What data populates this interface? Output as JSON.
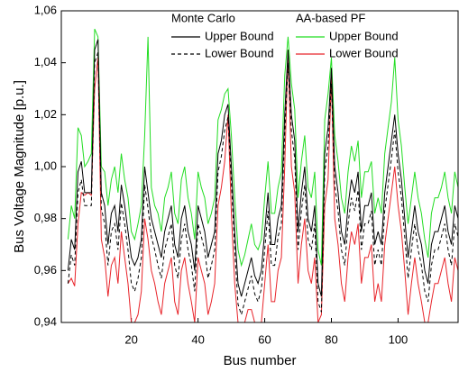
{
  "chart_data": {
    "type": "line",
    "xlabel": "Bus number",
    "ylabel": "Bus Voltage Magnitude [p.u.]",
    "legend_groups": [
      "Monte Carlo",
      "AA-based PF"
    ],
    "xlim": [
      -1,
      118
    ],
    "xticks": [
      20,
      40,
      60,
      80,
      100
    ],
    "ylim": [
      0.94,
      1.06
    ],
    "yticks": [
      {
        "value": 0.94,
        "label": "0,94"
      },
      {
        "value": 0.96,
        "label": "0,96"
      },
      {
        "value": 0.98,
        "label": "0,98"
      },
      {
        "value": 1.0,
        "label": "1,00"
      },
      {
        "value": 1.02,
        "label": "1,02"
      },
      {
        "value": 1.04,
        "label": "1,04"
      },
      {
        "value": 1.06,
        "label": "1,06"
      }
    ],
    "x": [
      1,
      2,
      3,
      4,
      5,
      6,
      7,
      8,
      9,
      10,
      11,
      12,
      13,
      14,
      15,
      16,
      17,
      18,
      19,
      20,
      21,
      22,
      23,
      24,
      25,
      26,
      27,
      28,
      29,
      30,
      31,
      32,
      33,
      34,
      35,
      36,
      37,
      38,
      39,
      40,
      41,
      42,
      43,
      44,
      45,
      46,
      47,
      48,
      49,
      50,
      51,
      52,
      53,
      54,
      55,
      56,
      57,
      58,
      59,
      60,
      61,
      62,
      63,
      64,
      65,
      66,
      67,
      68,
      69,
      70,
      71,
      72,
      73,
      74,
      75,
      76,
      77,
      78,
      79,
      80,
      81,
      82,
      83,
      84,
      85,
      86,
      87,
      88,
      89,
      90,
      91,
      92,
      93,
      94,
      95,
      96,
      97,
      98,
      99,
      100,
      101,
      102,
      103,
      104,
      105,
      106,
      107,
      108,
      109,
      110,
      111,
      112,
      113,
      114,
      115,
      116,
      117,
      118
    ],
    "series": [
      {
        "name": "Upper Bound",
        "group": 0,
        "color": "#000000",
        "line_style": "solid",
        "values": [
          0.96,
          0.972,
          0.968,
          0.998,
          1.002,
          0.99,
          0.99,
          0.99,
          1.045,
          1.049,
          0.99,
          0.985,
          0.97,
          0.982,
          0.985,
          0.975,
          0.993,
          0.985,
          0.975,
          0.965,
          0.962,
          0.965,
          0.972,
          1.0,
          0.99,
          0.98,
          0.975,
          0.97,
          0.965,
          0.975,
          0.98,
          0.985,
          0.97,
          0.965,
          0.98,
          0.985,
          0.975,
          0.97,
          0.96,
          0.985,
          0.98,
          0.975,
          0.965,
          0.97,
          0.975,
          1.005,
          1.01,
          1.02,
          1.024,
          1.0,
          0.975,
          0.955,
          0.95,
          0.955,
          0.96,
          0.965,
          0.958,
          0.955,
          0.96,
          0.975,
          0.99,
          0.97,
          0.97,
          0.98,
          0.985,
          1.02,
          1.045,
          1.02,
          1.01,
          0.975,
          0.99,
          1.0,
          0.98,
          0.975,
          0.985,
          0.955,
          0.95,
          1.005,
          1.015,
          1.038,
          1.0,
          0.99,
          0.975,
          0.97,
          0.985,
          0.995,
          0.99,
          0.998,
          0.975,
          0.985,
          0.985,
          0.99,
          0.97,
          0.975,
          0.97,
          0.99,
          1.0,
          1.01,
          1.02,
          1.005,
          0.995,
          0.98,
          0.965,
          0.975,
          0.985,
          0.975,
          0.97,
          0.96,
          0.955,
          0.97,
          0.975,
          0.975,
          0.98,
          0.985,
          0.975,
          0.97,
          0.985,
          0.98
        ]
      },
      {
        "name": "Lower Bound",
        "group": 0,
        "color": "#000000",
        "line_style": "dashed",
        "values": [
          0.955,
          0.966,
          0.962,
          0.99,
          0.995,
          0.985,
          0.985,
          0.985,
          1.04,
          1.044,
          0.984,
          0.978,
          0.962,
          0.975,
          0.978,
          0.968,
          0.986,
          0.978,
          0.968,
          0.955,
          0.952,
          0.957,
          0.965,
          0.993,
          0.984,
          0.973,
          0.968,
          0.962,
          0.957,
          0.968,
          0.973,
          0.978,
          0.962,
          0.957,
          0.972,
          0.978,
          0.968,
          0.962,
          0.952,
          0.978,
          0.973,
          0.968,
          0.957,
          0.962,
          0.968,
          0.998,
          1.004,
          1.014,
          1.019,
          0.994,
          0.968,
          0.947,
          0.943,
          0.948,
          0.953,
          0.958,
          0.951,
          0.948,
          0.953,
          0.968,
          0.983,
          0.962,
          0.962,
          0.973,
          0.978,
          1.013,
          1.04,
          1.014,
          1.003,
          0.968,
          0.983,
          0.993,
          0.972,
          0.968,
          0.978,
          0.948,
          0.944,
          0.998,
          1.008,
          1.032,
          0.993,
          0.983,
          0.968,
          0.962,
          0.978,
          0.988,
          0.983,
          0.991,
          0.968,
          0.978,
          0.978,
          0.983,
          0.962,
          0.968,
          0.962,
          0.983,
          0.993,
          1.003,
          1.014,
          0.998,
          0.988,
          0.973,
          0.957,
          0.968,
          0.978,
          0.968,
          0.962,
          0.952,
          0.948,
          0.962,
          0.968,
          0.968,
          0.973,
          0.978,
          0.968,
          0.962,
          0.978,
          0.973
        ]
      },
      {
        "name": "Upper Bound",
        "group": 1,
        "color": "#22dd22",
        "line_style": "solid",
        "values": [
          0.972,
          0.985,
          0.98,
          1.015,
          1.012,
          1.0,
          1.002,
          1.005,
          1.053,
          1.05,
          1.0,
          0.998,
          0.985,
          0.995,
          1.0,
          0.99,
          1.005,
          0.995,
          0.988,
          0.975,
          0.972,
          0.978,
          0.985,
          1.012,
          1.05,
          0.992,
          0.985,
          0.982,
          0.975,
          0.988,
          0.992,
          0.998,
          0.982,
          0.978,
          0.995,
          1.0,
          0.988,
          0.982,
          0.972,
          0.998,
          0.992,
          0.988,
          0.978,
          0.982,
          0.988,
          1.018,
          1.022,
          1.028,
          1.03,
          1.012,
          0.988,
          0.968,
          0.962,
          0.966,
          0.972,
          0.978,
          0.97,
          0.968,
          0.972,
          0.988,
          1.002,
          0.982,
          0.982,
          0.992,
          0.998,
          1.035,
          1.05,
          1.032,
          1.022,
          0.988,
          1.002,
          1.012,
          0.992,
          0.988,
          0.998,
          0.968,
          0.962,
          1.018,
          1.028,
          1.042,
          1.012,
          1.002,
          0.988,
          0.982,
          0.998,
          1.008,
          1.002,
          1.01,
          0.988,
          0.998,
          0.998,
          1.002,
          0.982,
          0.988,
          0.982,
          1.005,
          1.015,
          1.025,
          1.042,
          1.018,
          1.008,
          0.992,
          0.978,
          0.988,
          0.998,
          0.988,
          0.982,
          0.972,
          0.965,
          0.982,
          0.988,
          0.988,
          0.992,
          0.998,
          0.988,
          0.982,
          0.998,
          0.992
        ]
      },
      {
        "name": "Lower Bound",
        "group": 1,
        "color": "#e8242a",
        "line_style": "solid",
        "values": [
          0.955,
          0.957,
          0.954,
          0.978,
          0.99,
          0.989,
          0.99,
          0.989,
          1.03,
          1.042,
          0.972,
          0.965,
          0.95,
          0.962,
          0.965,
          0.955,
          0.975,
          0.965,
          0.955,
          0.94,
          0.94,
          0.943,
          0.952,
          0.98,
          0.972,
          0.96,
          0.955,
          0.948,
          0.943,
          0.955,
          0.96,
          0.965,
          0.948,
          0.943,
          0.96,
          0.965,
          0.955,
          0.948,
          0.94,
          0.965,
          0.96,
          0.955,
          0.943,
          0.948,
          0.955,
          0.985,
          0.992,
          1.002,
          1.02,
          0.982,
          0.955,
          0.94,
          0.94,
          0.94,
          0.945,
          0.945,
          0.94,
          0.94,
          0.94,
          0.955,
          0.97,
          0.948,
          0.948,
          0.96,
          0.965,
          1.0,
          1.045,
          1.0,
          0.99,
          0.955,
          0.97,
          0.98,
          0.96,
          0.955,
          0.965,
          0.94,
          0.943,
          0.985,
          0.995,
          1.035,
          0.98,
          0.97,
          0.955,
          0.948,
          0.965,
          0.975,
          0.97,
          0.978,
          0.955,
          0.965,
          0.965,
          0.97,
          0.948,
          0.955,
          0.948,
          0.97,
          0.98,
          0.99,
          1.0,
          0.985,
          0.975,
          0.96,
          0.943,
          0.955,
          0.965,
          0.955,
          0.948,
          0.94,
          0.94,
          0.948,
          0.955,
          0.955,
          0.96,
          0.965,
          0.955,
          0.948,
          0.965,
          0.96
        ]
      }
    ]
  }
}
